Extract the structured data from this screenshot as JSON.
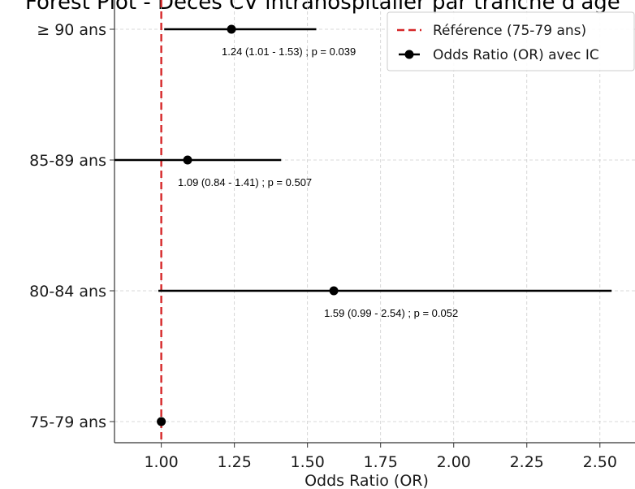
{
  "chart_data": {
    "type": "forest",
    "title": "Forest Plot - Décès CV intrahospitalier par tranche d'âge",
    "xlabel": "Odds Ratio (OR)",
    "ylabel": "",
    "xlim": [
      0.84,
      2.62
    ],
    "x_ticks": [
      "1.00",
      "1.25",
      "1.50",
      "1.75",
      "2.00",
      "2.25",
      "2.50"
    ],
    "x_tick_values": [
      1.0,
      1.25,
      1.5,
      1.75,
      2.0,
      2.25,
      2.5
    ],
    "categories": [
      "≥ 90 ans",
      "85-89 ans",
      "80-84 ans",
      "75-79 ans"
    ],
    "or": [
      1.24,
      1.09,
      1.59,
      1.0
    ],
    "ci_low": [
      1.01,
      0.84,
      0.99,
      null
    ],
    "ci_high": [
      1.53,
      1.41,
      2.54,
      null
    ],
    "annotations": [
      "1.24 (1.01 - 1.53) ; p = 0.039",
      "1.09 (0.84 - 1.41) ; p = 0.507",
      "1.59 (0.99 - 2.54) ; p = 0.052",
      ""
    ],
    "reference_value": 1.0,
    "legend": {
      "placement": "top-right",
      "entries": [
        "Référence (75-79 ans)",
        "Odds Ratio (OR) avec IC"
      ]
    },
    "grid": true,
    "colors": {
      "reference": "#d62728",
      "marker": "#000000",
      "grid": "#cccccc",
      "axis": "#333333"
    }
  }
}
